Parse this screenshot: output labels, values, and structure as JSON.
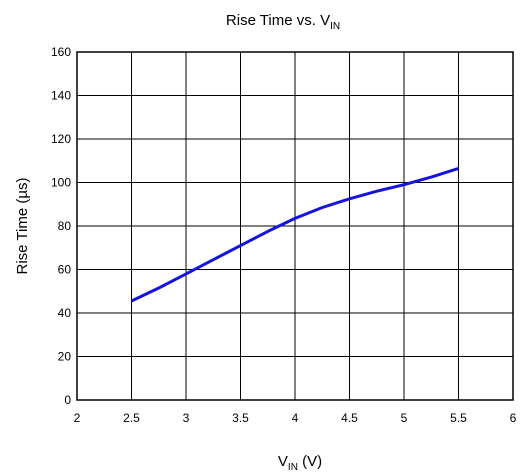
{
  "chart_data": {
    "type": "line",
    "title": "Rise Time vs. V",
    "title_subscript": "IN",
    "xlabel": "V",
    "xlabel_subscript": "IN",
    "xlabel_suffix": " (V)",
    "ylabel": "Rise Time (µs)",
    "xlim": [
      2,
      6
    ],
    "ylim": [
      0,
      160
    ],
    "x_ticks": [
      "2",
      "2.5",
      "3",
      "3.5",
      "4",
      "4.5",
      "5",
      "5.5",
      "6"
    ],
    "y_ticks": [
      "0",
      "20",
      "40",
      "60",
      "80",
      "100",
      "120",
      "140",
      "160"
    ],
    "grid": true,
    "legend": "none",
    "series": [
      {
        "color": "#1414dc",
        "x": [
          2.5,
          2.75,
          3.0,
          3.25,
          3.5,
          3.75,
          4.0,
          4.25,
          4.5,
          4.75,
          5.0,
          5.25,
          5.5
        ],
        "y": [
          45.5,
          51.5,
          58,
          64.5,
          71,
          77.5,
          83.5,
          88.5,
          92.5,
          96,
          99,
          102.5,
          106.5
        ]
      }
    ]
  }
}
